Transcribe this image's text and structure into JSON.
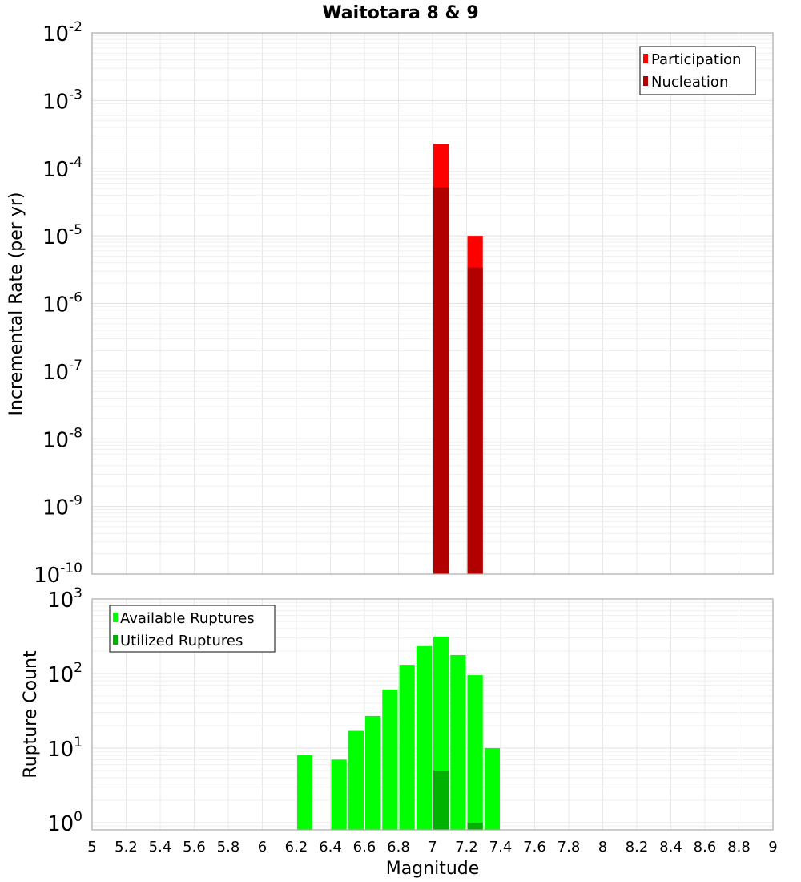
{
  "chart_data": [
    {
      "type": "bar",
      "title": "Waitotara 8 & 9",
      "xlabel": "Magnitude",
      "ylabel": "Incremental Rate (per yr)",
      "yscale": "log",
      "ylim": [
        1e-10,
        0.01
      ],
      "xlim": [
        5,
        9
      ],
      "grid": true,
      "legend_position": "upper right",
      "bin_width": 0.1,
      "series": [
        {
          "name": "Participation",
          "color": "#ff0000",
          "x": [
            7.05,
            7.25
          ],
          "values": [
            0.00023,
            1e-05
          ]
        },
        {
          "name": "Nucleation",
          "color": "#b20000",
          "x": [
            7.05,
            7.25
          ],
          "values": [
            5.2e-05,
            3.4e-06
          ]
        }
      ],
      "ytick_exponents": [
        -10,
        -9,
        -8,
        -7,
        -6,
        -5,
        -4,
        -3,
        -2
      ]
    },
    {
      "type": "bar",
      "title": "",
      "xlabel": "Magnitude",
      "ylabel": "Rupture Count",
      "yscale": "log",
      "ylim": [
        0.8,
        1000
      ],
      "xlim": [
        5,
        9
      ],
      "grid": true,
      "legend_position": "upper left",
      "bin_width": 0.1,
      "series": [
        {
          "name": "Available Ruptures",
          "color": "#00ff00",
          "x": [
            6.25,
            6.45,
            6.55,
            6.65,
            6.75,
            6.85,
            6.95,
            7.05,
            7.15,
            7.25,
            7.35
          ],
          "values": [
            8,
            7,
            17,
            27,
            61,
            131,
            233,
            312,
            177,
            95,
            10
          ]
        },
        {
          "name": "Utilized Ruptures",
          "color": "#00b200",
          "x": [
            7.05,
            7.25
          ],
          "values": [
            5,
            1
          ]
        }
      ],
      "ytick_exponents": [
        0,
        1,
        2,
        3
      ]
    }
  ],
  "xticks": [
    "5",
    "5.2",
    "5.4",
    "5.6",
    "5.8",
    "6",
    "6.2",
    "6.4",
    "6.6",
    "6.8",
    "7",
    "7.2",
    "7.4",
    "7.6",
    "7.8",
    "8",
    "8.2",
    "8.4",
    "8.6",
    "8.8",
    "9"
  ]
}
